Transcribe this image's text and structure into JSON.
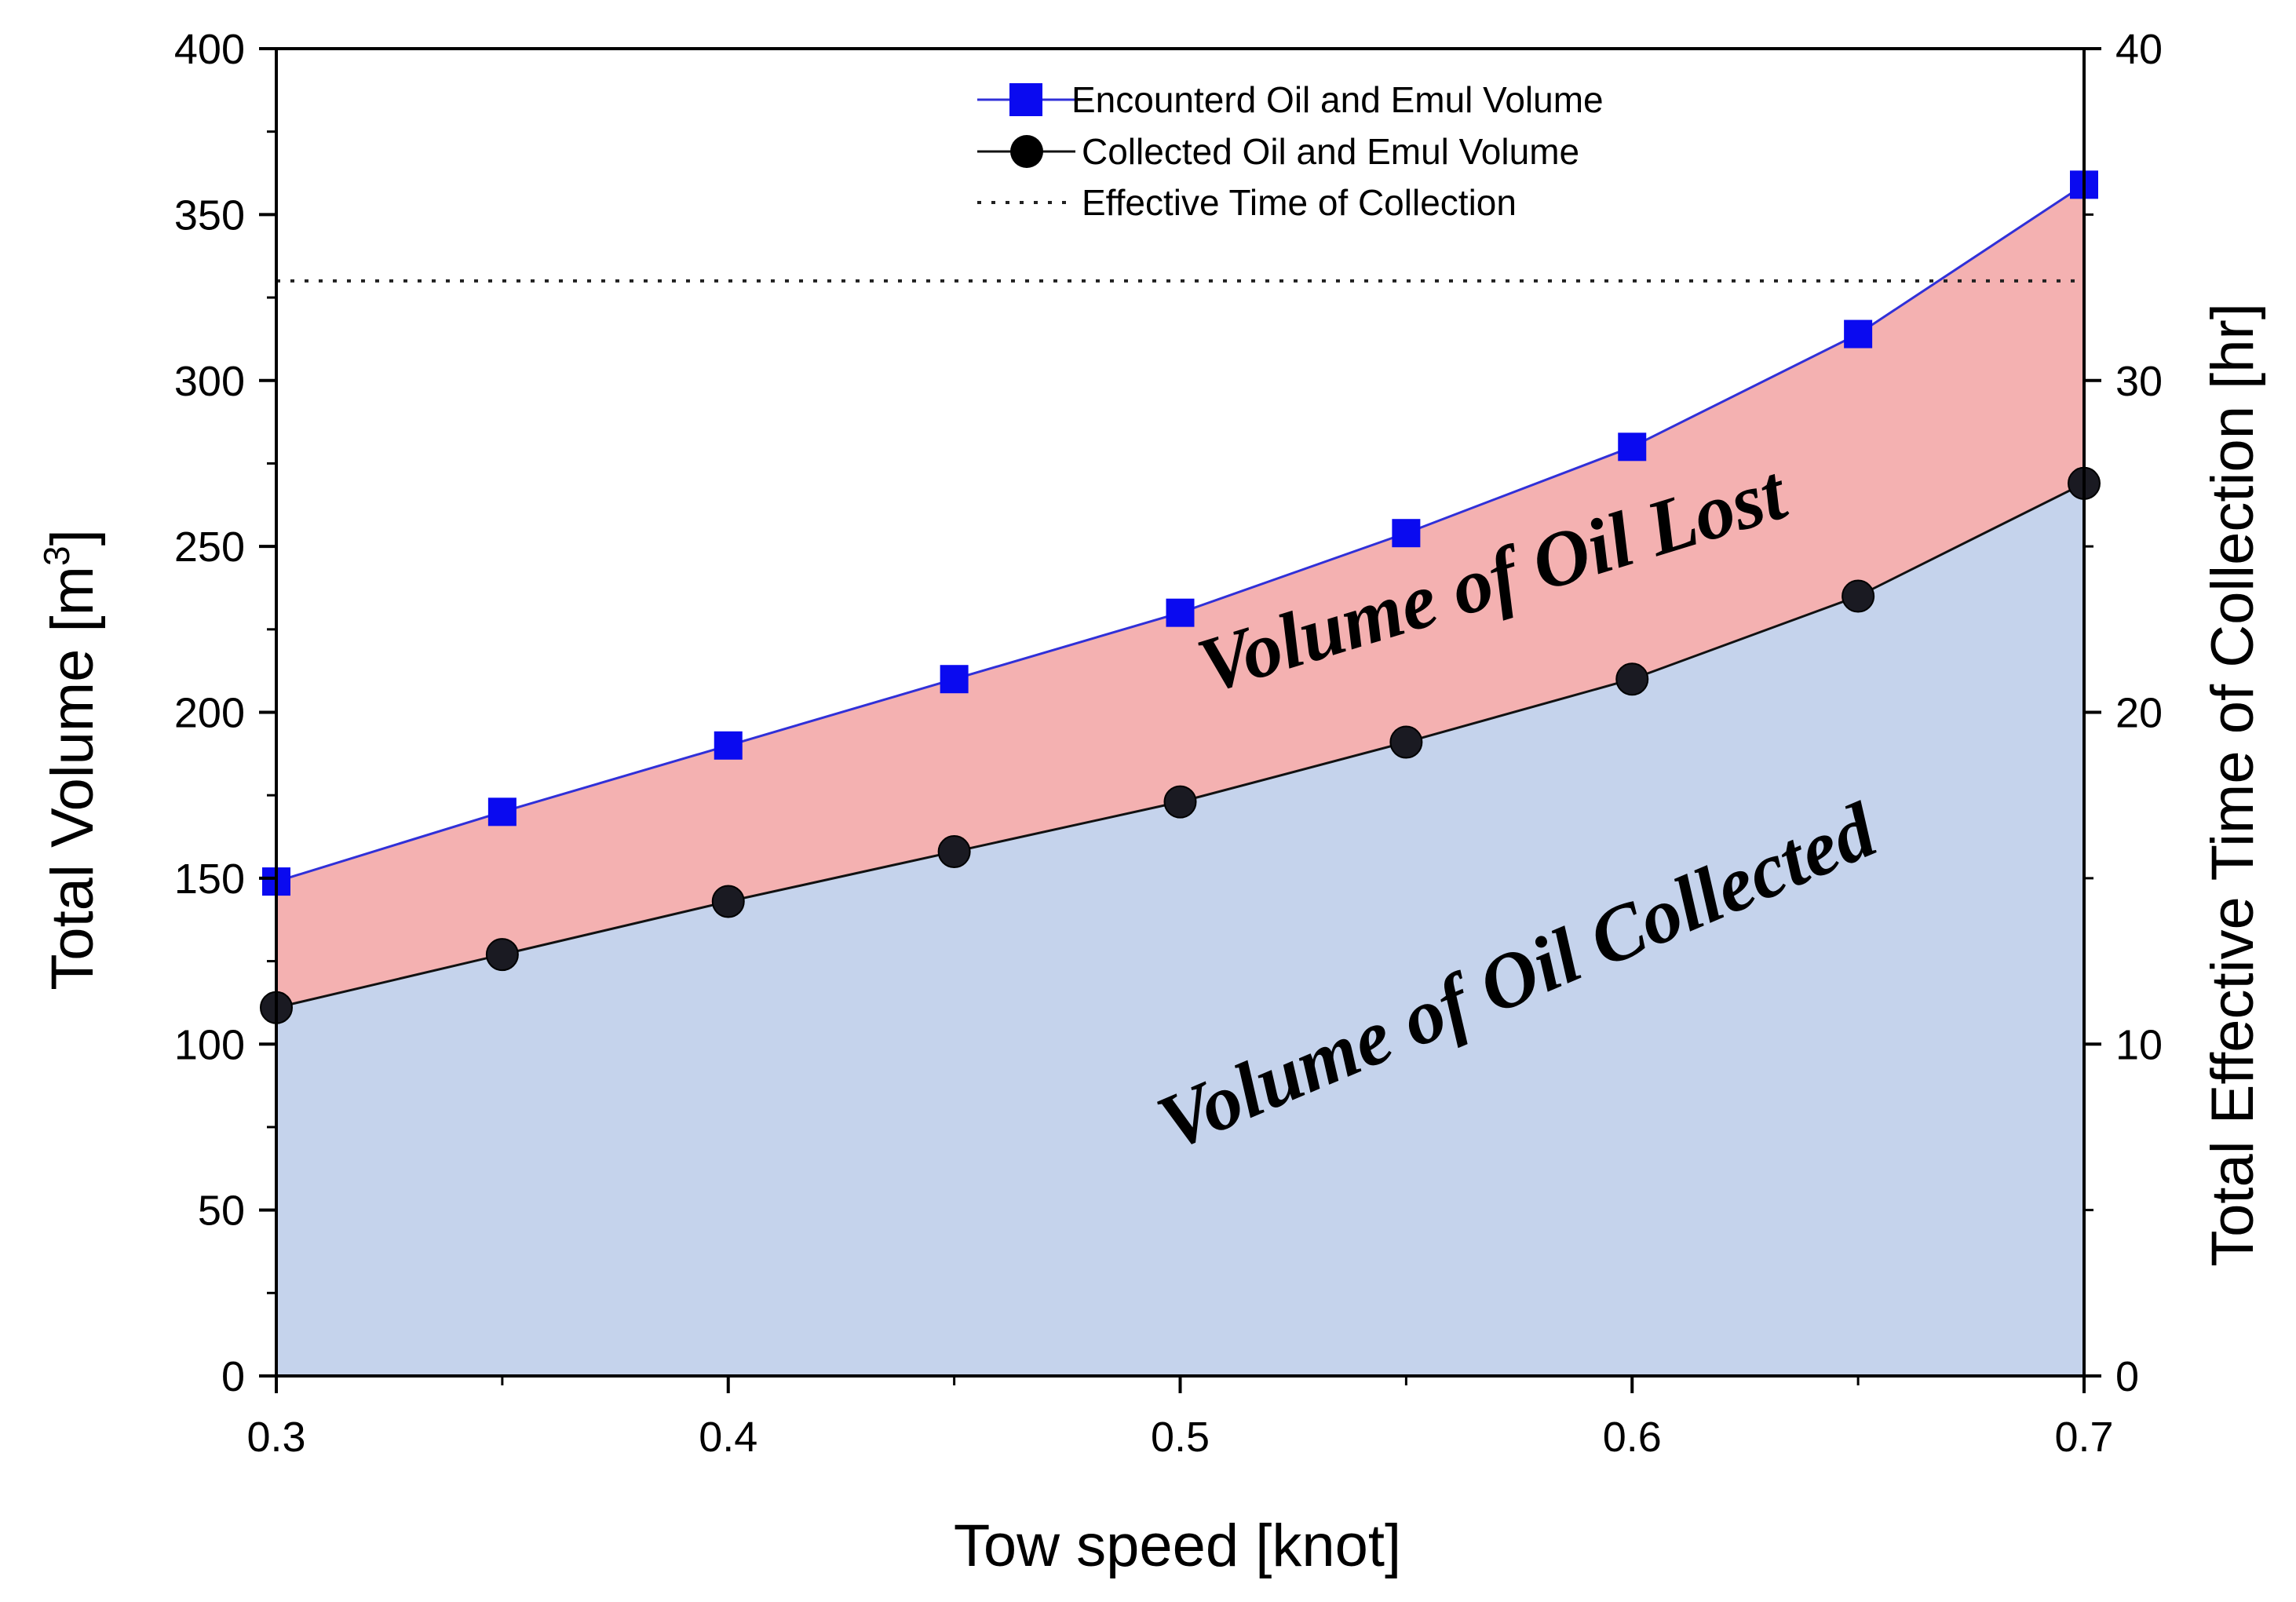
{
  "chart_data": {
    "type": "area",
    "title": "",
    "xlabel": "Tow speed [knot]",
    "ylabel": "Total Volume [m",
    "ylabel_superscript": "3",
    "ylabel_suffix": "]",
    "y2label": "Total Effective Time of Collection [hr]",
    "xlim": [
      0.3,
      0.7
    ],
    "ylim": [
      0,
      400
    ],
    "y2lim": [
      0,
      40
    ],
    "x_ticks": [
      "0.3",
      "0.4",
      "0.5",
      "0.6",
      "0.7"
    ],
    "y_ticks": [
      "0",
      "50",
      "100",
      "150",
      "200",
      "250",
      "300",
      "350",
      "400"
    ],
    "y2_ticks": [
      "0",
      "10",
      "20",
      "30",
      "40"
    ],
    "x": [
      0.3,
      0.35,
      0.4,
      0.45,
      0.5,
      0.55,
      0.6,
      0.65,
      0.7
    ],
    "series": [
      {
        "name": "Encounterd Oil and Emul Volume",
        "marker": "square",
        "color": "#0a0af0",
        "values": [
          149,
          170,
          190,
          210,
          230,
          254,
          280,
          314,
          359
        ]
      },
      {
        "name": "Collected Oil and Emul Volume",
        "marker": "circle",
        "color": "#111111",
        "values": [
          111,
          127,
          143,
          158,
          173,
          191,
          210,
          235,
          269
        ]
      },
      {
        "name": "Effective Time of Collection",
        "style": "dotted",
        "axis": "right",
        "value_hr": 33
      }
    ],
    "regions": [
      {
        "name": "Volume of Oil Lost",
        "color": "#f4b1b1"
      },
      {
        "name": "Volume of Oil Collected",
        "color": "#c5d3ec"
      }
    ],
    "legend_position": "top-center",
    "grid": false
  }
}
